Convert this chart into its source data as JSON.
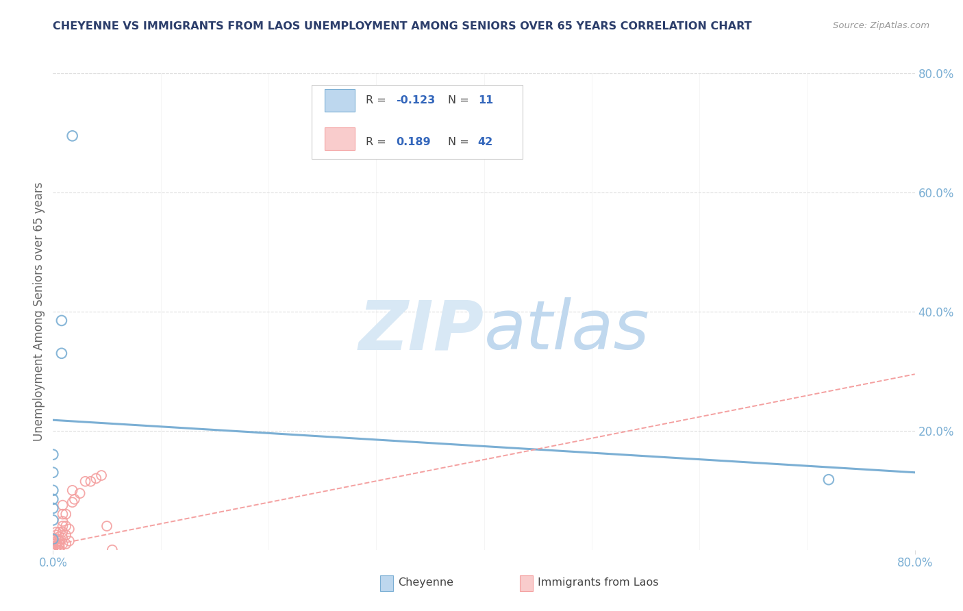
{
  "title": "CHEYENNE VS IMMIGRANTS FROM LAOS UNEMPLOYMENT AMONG SENIORS OVER 65 YEARS CORRELATION CHART",
  "source": "Source: ZipAtlas.com",
  "ylabel": "Unemployment Among Seniors over 65 years",
  "right_yticks": [
    0.2,
    0.4,
    0.6,
    0.8
  ],
  "right_yticklabels": [
    "20.0%",
    "40.0%",
    "60.0%",
    "80.0%"
  ],
  "xlim": [
    0.0,
    0.8
  ],
  "ylim": [
    0.0,
    0.8
  ],
  "legend_r_blue": "-0.123",
  "legend_n_blue": "11",
  "legend_r_pink": "0.189",
  "legend_n_pink": "42",
  "blue_color": "#7BAFD4",
  "pink_color": "#F4A0A0",
  "blue_fill": "#BDD7EE",
  "pink_fill": "#F9CCCC",
  "title_color": "#2C3E6B",
  "axis_tick_color": "#7BAFD4",
  "ylabel_color": "#666666",
  "source_color": "#999999",
  "background_color": "#FFFFFF",
  "grid_color": "#DDDDDD",
  "blue_scatter": [
    [
      0.018,
      0.695
    ],
    [
      0.008,
      0.385
    ],
    [
      0.008,
      0.33
    ],
    [
      0.0,
      0.16
    ],
    [
      0.0,
      0.13
    ],
    [
      0.0,
      0.1
    ],
    [
      0.0,
      0.085
    ],
    [
      0.0,
      0.07
    ],
    [
      0.0,
      0.05
    ],
    [
      0.0,
      0.018
    ],
    [
      0.72,
      0.118
    ]
  ],
  "pink_scatter": [
    [
      0.0,
      0.0
    ],
    [
      0.0,
      0.003
    ],
    [
      0.0,
      0.006
    ],
    [
      0.0,
      0.01
    ],
    [
      0.0,
      0.013
    ],
    [
      0.0,
      0.016
    ],
    [
      0.0,
      0.02
    ],
    [
      0.003,
      0.0
    ],
    [
      0.003,
      0.005
    ],
    [
      0.003,
      0.01
    ],
    [
      0.003,
      0.018
    ],
    [
      0.006,
      0.0
    ],
    [
      0.006,
      0.005
    ],
    [
      0.006,
      0.01
    ],
    [
      0.006,
      0.015
    ],
    [
      0.006,
      0.022
    ],
    [
      0.009,
      0.01
    ],
    [
      0.009,
      0.02
    ],
    [
      0.009,
      0.03
    ],
    [
      0.009,
      0.04
    ],
    [
      0.009,
      0.06
    ],
    [
      0.009,
      0.075
    ],
    [
      0.012,
      0.01
    ],
    [
      0.012,
      0.025
    ],
    [
      0.012,
      0.04
    ],
    [
      0.012,
      0.06
    ],
    [
      0.015,
      0.015
    ],
    [
      0.015,
      0.035
    ],
    [
      0.018,
      0.08
    ],
    [
      0.018,
      0.1
    ],
    [
      0.02,
      0.085
    ],
    [
      0.025,
      0.095
    ],
    [
      0.03,
      0.115
    ],
    [
      0.035,
      0.115
    ],
    [
      0.04,
      0.12
    ],
    [
      0.045,
      0.125
    ],
    [
      0.05,
      0.04
    ],
    [
      0.055,
      0.0
    ],
    [
      0.009,
      0.048
    ],
    [
      0.003,
      0.025
    ],
    [
      0.003,
      0.03
    ],
    [
      0.006,
      0.03
    ]
  ],
  "blue_trend_x": [
    0.0,
    0.8
  ],
  "blue_trend_y": [
    0.218,
    0.13
  ],
  "pink_trend_x": [
    0.0,
    0.8
  ],
  "pink_trend_y": [
    0.008,
    0.295
  ],
  "watermark_zip_color": "#D8E8F5",
  "watermark_atlas_color": "#C0D8EE"
}
